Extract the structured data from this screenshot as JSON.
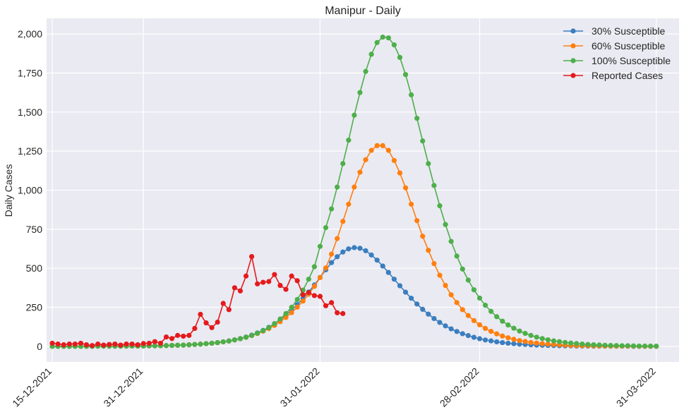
{
  "chart_data": {
    "type": "line",
    "title": "Manipur - Daily",
    "xlabel": "",
    "ylabel": "Daily Cases",
    "x_start": "15-12-2021",
    "x_end": "31-03-2022",
    "xlim": [
      "14-12-2021",
      "04-04-2022"
    ],
    "ylim": [
      -100,
      2100
    ],
    "grid": true,
    "legend_position": "top-right",
    "x_ticks": [
      "15-12-2021",
      "31-12-2021",
      "31-01-2022",
      "28-02-2022",
      "31-03-2022"
    ],
    "y_ticks": [
      0,
      250,
      500,
      750,
      1000,
      1250,
      1500,
      1750,
      2000
    ],
    "y_tick_labels": [
      "0",
      "250",
      "500",
      "750",
      "1,000",
      "1,250",
      "1,500",
      "1,750",
      "2,000"
    ],
    "series": [
      {
        "name": "30% Susceptible",
        "color": "#3a7ebf",
        "values": [
          0,
          0,
          0,
          0,
          0,
          0,
          0,
          0,
          1,
          1,
          1,
          1,
          1,
          2,
          2,
          2,
          3,
          3,
          4,
          4,
          5,
          6,
          7,
          8,
          10,
          12,
          14,
          17,
          20,
          24,
          29,
          35,
          42,
          50,
          60,
          72,
          86,
          102,
          122,
          145,
          171,
          200,
          232,
          267,
          306,
          348,
          393,
          441,
          490,
          536,
          574,
          604,
          624,
          632,
          628,
          612,
          585,
          552,
          514,
          473,
          430,
          388,
          347,
          308,
          271,
          237,
          206,
          178,
          153,
          131,
          112,
          95,
          81,
          69,
          58,
          49,
          41,
          35,
          29,
          24,
          20,
          17,
          14,
          12,
          10,
          8,
          7,
          6,
          5,
          4,
          3,
          3,
          2,
          2,
          2,
          1,
          1,
          1,
          1,
          1,
          1,
          1,
          0,
          0,
          0,
          0,
          0
        ]
      },
      {
        "name": "60% Susceptible",
        "color": "#ff7f0e",
        "values": [
          0,
          0,
          0,
          0,
          0,
          0,
          0,
          0,
          1,
          1,
          1,
          1,
          1,
          1,
          2,
          2,
          2,
          3,
          3,
          4,
          5,
          6,
          7,
          8,
          10,
          12,
          14,
          17,
          20,
          24,
          29,
          34,
          41,
          49,
          58,
          69,
          82,
          97,
          114,
          134,
          158,
          185,
          216,
          251,
          290,
          334,
          384,
          440,
          502,
          590,
          690,
          800,
          910,
          1020,
          1115,
          1195,
          1255,
          1285,
          1285,
          1255,
          1190,
          1110,
          1015,
          910,
          805,
          705,
          615,
          530,
          455,
          390,
          330,
          280,
          235,
          197,
          165,
          138,
          115,
          96,
          80,
          66,
          55,
          45,
          37,
          31,
          25,
          21,
          17,
          14,
          12,
          10,
          8,
          6,
          5,
          4,
          4,
          3,
          2,
          2,
          2,
          1,
          1,
          1,
          1,
          0,
          0,
          0,
          0
        ]
      },
      {
        "name": "100% Susceptible",
        "color": "#4daf4a",
        "values": [
          0,
          0,
          0,
          0,
          0,
          0,
          0,
          0,
          1,
          1,
          1,
          1,
          1,
          1,
          2,
          2,
          2,
          3,
          3,
          4,
          5,
          6,
          7,
          8,
          10,
          12,
          14,
          17,
          20,
          24,
          29,
          34,
          41,
          49,
          58,
          70,
          84,
          100,
          120,
          145,
          175,
          210,
          250,
          300,
          360,
          430,
          510,
          640,
          760,
          880,
          1020,
          1170,
          1320,
          1480,
          1625,
          1760,
          1870,
          1945,
          1980,
          1975,
          1930,
          1850,
          1740,
          1610,
          1460,
          1315,
          1170,
          1030,
          900,
          780,
          672,
          578,
          495,
          424,
          362,
          309,
          263,
          224,
          190,
          161,
          137,
          116,
          98,
          83,
          70,
          59,
          50,
          42,
          35,
          30,
          25,
          21,
          18,
          15,
          12,
          10,
          9,
          7,
          6,
          5,
          4,
          4,
          3,
          2,
          2,
          2,
          1
        ]
      },
      {
        "name": "Reported Cases",
        "color": "#e41a1c",
        "values": [
          20,
          15,
          10,
          15,
          15,
          20,
          10,
          5,
          15,
          8,
          12,
          15,
          8,
          15,
          15,
          10,
          18,
          20,
          30,
          20,
          60,
          50,
          70,
          65,
          70,
          115,
          205,
          150,
          120,
          155,
          275,
          235,
          375,
          355,
          450,
          575,
          400,
          410,
          415,
          460,
          390,
          365,
          450,
          420,
          330,
          345,
          325,
          320,
          260,
          280,
          215,
          210
        ]
      }
    ]
  }
}
